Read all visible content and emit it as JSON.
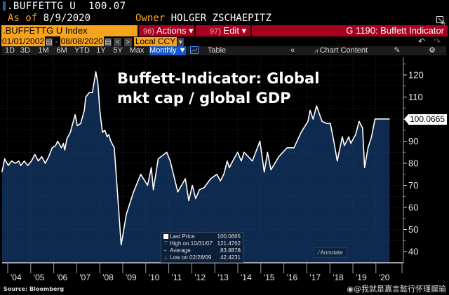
{
  "header": {
    "ticker": ".BUFFETTG U",
    "last_value": "100.07",
    "as_of_label": "As of",
    "as_of_date": "8/9/2020",
    "owner_label": "Owner",
    "owner_name": "HOLGER ZSCHAEPITZ"
  },
  "command_bar": {
    "security": ".BUFFETTG U Index",
    "actions_num": "96)",
    "actions_label": "Actions ▾",
    "edit_num": "97)",
    "edit_label": "Edit ▾",
    "chart_name": "G 1190: Buffett Indicator"
  },
  "date_bar": {
    "start_date": "01/01/2002",
    "dash": "-",
    "end_date": "08/08/2020",
    "prev": "<",
    "next": ">",
    "currency": "Local CCY",
    "undo": "↶",
    "redo": "↷"
  },
  "toolbar": {
    "ranges": [
      "1D",
      "3D",
      "1M",
      "6M",
      "YTD",
      "1Y",
      "5Y",
      "Max"
    ],
    "frequency": "Monthly ▼",
    "table_label": "Table",
    "collapse": "«",
    "chart_content_label": "Chart Content"
  },
  "overlay": {
    "title_line1": "Buffett-Indicator: Global",
    "title_line2": "mkt cap / global GDP"
  },
  "legend": {
    "rows": [
      {
        "label": "Last Price",
        "value": "100.0665"
      },
      {
        "label": "High on 10/31/07",
        "value": "121.4762"
      },
      {
        "label": "Average",
        "value": "83.8878"
      },
      {
        "label": "Low on 02/28/09",
        "value": "42.4231"
      }
    ]
  },
  "annotate_label": "Annotate",
  "last_price_tag": "100.0665",
  "source": "Source: Bloomberg",
  "watermark": "@我就是嘉言懿行怀瑾握瑜",
  "colors": {
    "area_fill": "#0e2a4e",
    "line": "#ffffff",
    "orange": "#f7a41d",
    "red": "#a8001e",
    "active_blue": "#1458c8"
  },
  "chart_data": {
    "type": "area",
    "title": "Buffett-Indicator: Global mkt cap / global GDP",
    "xlabel": "",
    "ylabel": "",
    "ylim": [
      35,
      126
    ],
    "xlim": [
      2003.75,
      2020.9
    ],
    "yticks": [
      40,
      50,
      60,
      70,
      80,
      90,
      100,
      110,
      120
    ],
    "xtick_labels": [
      "'04",
      "'05",
      "'06",
      "'07",
      "'08",
      "'09",
      "'10",
      "'11",
      "'12",
      "'13",
      "'14",
      "'15",
      "'16",
      "'17",
      "'18",
      "'19",
      "'20"
    ],
    "xtick_years": [
      2004,
      2005,
      2006,
      2007,
      2008,
      2009,
      2010,
      2011,
      2012,
      2013,
      2014,
      2015,
      2016,
      2017,
      2018,
      2019,
      2020
    ],
    "grid": true,
    "series": [
      {
        "name": "Last Price",
        "x": [
          2003.75,
          2003.87,
          2004.02,
          2004.17,
          2004.33,
          2004.48,
          2004.57,
          2004.72,
          2004.87,
          2005.03,
          2005.18,
          2005.33,
          2005.48,
          2005.63,
          2005.78,
          2005.93,
          2006.08,
          2006.17,
          2006.33,
          2006.42,
          2006.48,
          2006.57,
          2006.72,
          2006.93,
          2007.02,
          2007.17,
          2007.33,
          2007.39,
          2007.54,
          2007.68,
          2007.83,
          2007.92,
          2008.0,
          2008.12,
          2008.22,
          2008.32,
          2008.39,
          2008.48,
          2008.63,
          2008.93,
          2009.16,
          2009.47,
          2009.78,
          2010.08,
          2010.24,
          2010.33,
          2010.54,
          2010.91,
          2011.06,
          2011.39,
          2011.72,
          2011.87,
          2012.02,
          2012.17,
          2012.33,
          2012.54,
          2012.82,
          2013.09,
          2013.24,
          2013.39,
          2013.54,
          2013.63,
          2013.78,
          2013.99,
          2014.15,
          2014.27,
          2014.63,
          2014.96,
          2015.15,
          2015.29,
          2015.44,
          2015.78,
          2016.14,
          2016.44,
          2016.75,
          2017.05,
          2017.14,
          2017.27,
          2017.42,
          2017.66,
          2017.87,
          2018.02,
          2018.17,
          2018.32,
          2018.54,
          2018.63,
          2018.82,
          2018.91,
          2019.12,
          2019.27,
          2019.42,
          2019.51,
          2019.66,
          2019.81,
          2019.96,
          2020.09,
          2020.24,
          2020.39,
          2020.6
        ],
        "values": [
          76,
          82,
          79,
          81,
          80,
          81,
          79,
          81,
          79,
          81,
          84,
          81,
          83,
          80,
          83,
          87,
          88,
          90,
          87,
          89,
          86,
          91,
          94,
          102,
          97,
          98,
          104,
          110,
          112,
          112,
          121.5,
          116,
          104,
          94,
          95,
          92,
          93,
          90,
          87,
          43,
          57,
          67,
          75,
          70,
          78,
          68,
          82,
          85,
          81,
          67,
          73,
          63,
          70,
          64,
          68,
          69,
          73,
          75,
          72,
          75,
          81,
          78,
          81,
          85,
          81,
          85,
          81,
          90,
          76,
          85,
          77,
          83,
          87,
          87,
          94,
          99,
          104,
          100,
          106,
          99,
          98,
          98,
          90,
          81,
          92,
          88,
          92,
          89,
          93,
          99,
          96,
          78,
          87,
          92,
          100.07,
          100.07,
          100.07,
          100.07,
          100.07
        ]
      }
    ]
  }
}
